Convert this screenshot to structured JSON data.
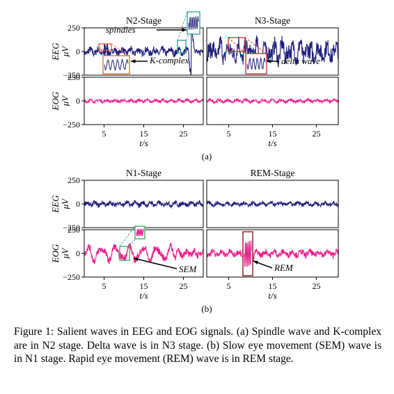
{
  "figure": {
    "caption": "Figure 1: Salient waves in EEG and EOG signals. (a) Spindle wave and K-complex are in N2 stage. Delta wave is in N3 stage. (b) Slow eye movement (SEM) wave is in N1 stage.  Rapid eye movement (REM) wave is in REM stage.",
    "colors": {
      "eeg": "#1f1f7a",
      "eog": "#ee1c8c",
      "axes": "#000000",
      "box_orange": "#e8622a",
      "box_teal": "#2a9d8f",
      "box_red": "#d62728",
      "box_green": "#3aa35a",
      "box_maroon": "#8b1a1a"
    }
  },
  "chart_data": [
    {
      "type": "line",
      "panel": "(a)",
      "xlabel": "t/s",
      "xlim": [
        0,
        30
      ],
      "xticks": [
        5,
        15,
        25
      ],
      "yticks": [
        250,
        0,
        -250
      ],
      "ylim": [
        -250,
        250
      ],
      "rows": [
        {
          "ylabel_1": "EEG",
          "ylabel_2": "μV",
          "signal": "eeg"
        },
        {
          "ylabel_1": "EOG",
          "ylabel_2": "μV",
          "signal": "eog"
        }
      ],
      "columns": [
        {
          "title": "N2-Stage",
          "eeg": {
            "amplitude": 45,
            "events": [
              {
                "kind": "spindles",
                "center": 5.5,
                "width": 3,
                "amplitude": 95
              },
              {
                "kind": "k-complex",
                "center": 27,
                "width": 1.5,
                "amplitude": 230
              }
            ]
          },
          "eog": {
            "amplitude": 18
          },
          "annotations": [
            {
              "label": "K-complex",
              "box_color": "box_teal"
            },
            {
              "label": "spindles",
              "box_color": "box_orange"
            }
          ]
        },
        {
          "title": "N3-Stage",
          "eeg": {
            "amplitude": 110,
            "events": [
              {
                "kind": "delta",
                "center": 10,
                "width": 28,
                "amplitude": 120
              }
            ]
          },
          "eog": {
            "amplitude": 20
          },
          "annotations": [
            {
              "label": "delta wave",
              "box_color": "box_red"
            }
          ]
        }
      ]
    },
    {
      "type": "line",
      "panel": "(b)",
      "xlabel": "t/s",
      "xlim": [
        0,
        30
      ],
      "xticks": [
        5,
        15,
        25
      ],
      "yticks": [
        250,
        0,
        -250
      ],
      "ylim": [
        -250,
        250
      ],
      "rows": [
        {
          "ylabel_1": "EEG",
          "ylabel_2": "μV",
          "signal": "eeg"
        },
        {
          "ylabel_1": "EOG",
          "ylabel_2": "μV",
          "signal": "eog"
        }
      ],
      "columns": [
        {
          "title": "N1-Stage",
          "eeg": {
            "amplitude": 30
          },
          "eog": {
            "amplitude": 45,
            "events": [
              {
                "kind": "sem",
                "center": 9,
                "width": 28,
                "amplitude": 60
              }
            ]
          },
          "annotations": [
            {
              "label": "SEM",
              "box_color": "box_green"
            }
          ]
        },
        {
          "title": "REM-Stage",
          "eeg": {
            "amplitude": 25
          },
          "eog": {
            "amplitude": 40,
            "events": [
              {
                "kind": "rem",
                "center": 9.5,
                "width": 3,
                "amplitude": 240
              }
            ]
          },
          "annotations": [
            {
              "label": "REM",
              "box_color": "box_maroon"
            }
          ]
        }
      ]
    }
  ]
}
